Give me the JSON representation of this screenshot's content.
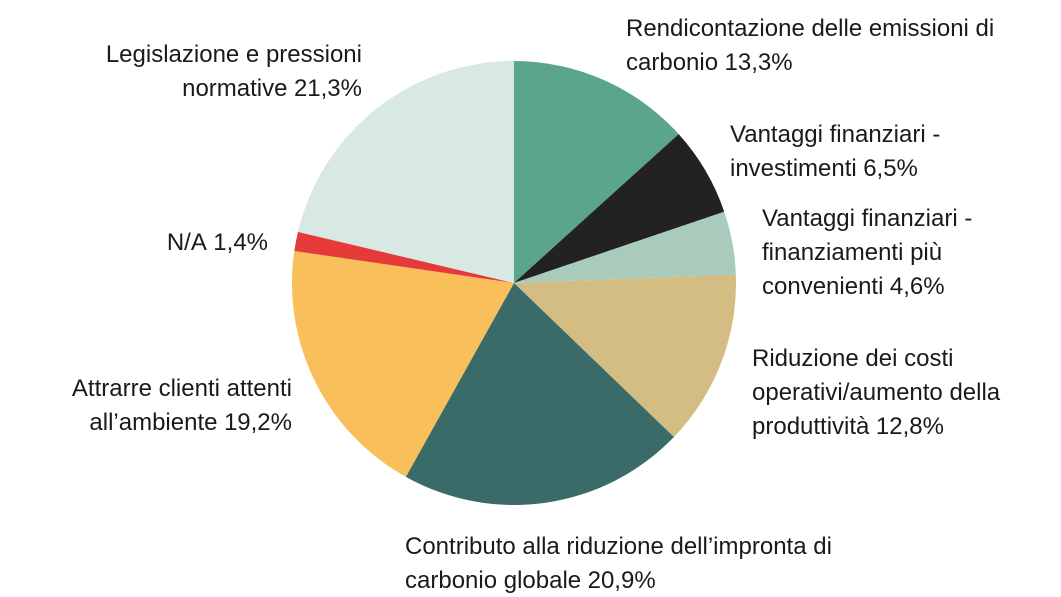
{
  "chart_data": {
    "type": "pie",
    "categories": [
      "Rendicontazione delle emissioni di carbonio",
      "Vantaggi finanziari - investimenti",
      "Vantaggi finanziari - finanziamenti più convenienti",
      "Riduzione dei costi operativi/aumento della produttività",
      "Contributo alla riduzione dell’impronta di carbonio globale",
      "Attrarre clienti attenti all’ambiente",
      "N/A",
      "Legislazione e pressioni normative"
    ],
    "values": [
      13.3,
      6.5,
      4.6,
      12.8,
      20.9,
      19.2,
      1.4,
      21.3
    ],
    "value_labels": [
      "13,3%",
      "6,5%",
      "4,6%",
      "12,8%",
      "20,9%",
      "19,2%",
      "1,4%",
      "21,3%"
    ],
    "colors": [
      "#5aa58c",
      "#222222",
      "#a8cbbb",
      "#d4bd82",
      "#3a6b68",
      "#f9bf5a",
      "#e63a3a",
      "#d8e8e3"
    ]
  }
}
